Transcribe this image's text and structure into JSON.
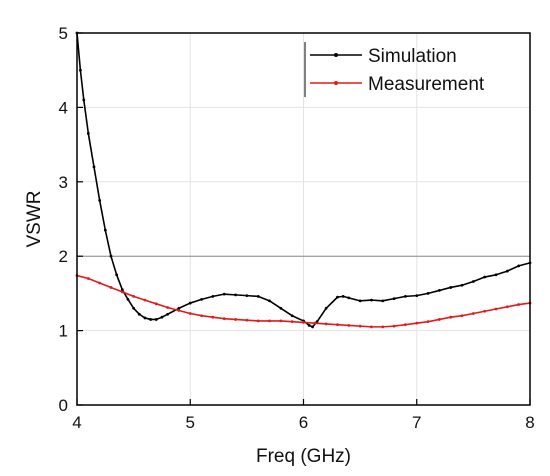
{
  "chart_data": {
    "type": "line",
    "title": "",
    "xlabel": "Freq (GHz)",
    "ylabel": "VSWR",
    "xlim": [
      4,
      8
    ],
    "ylim": [
      0,
      5
    ],
    "xticks": [
      4,
      5,
      6,
      7,
      8
    ],
    "yticks": [
      0,
      1,
      2,
      3,
      4,
      5
    ],
    "grid": "horizontal-and-vertical-light",
    "reference_line": {
      "y": 2
    },
    "legend_position": "top-right",
    "series": [
      {
        "name": "Simulation",
        "color": "#000000",
        "x": [
          4.0,
          4.03,
          4.06,
          4.1,
          4.15,
          4.2,
          4.25,
          4.3,
          4.35,
          4.4,
          4.45,
          4.5,
          4.55,
          4.6,
          4.65,
          4.7,
          4.75,
          4.8,
          4.9,
          5.0,
          5.1,
          5.2,
          5.3,
          5.4,
          5.5,
          5.6,
          5.7,
          5.8,
          5.9,
          6.0,
          6.05,
          6.08,
          6.12,
          6.2,
          6.3,
          6.35,
          6.4,
          6.5,
          6.6,
          6.7,
          6.8,
          6.9,
          7.0,
          7.1,
          7.2,
          7.3,
          7.4,
          7.5,
          7.6,
          7.7,
          7.8,
          7.9,
          8.0
        ],
        "values": [
          5.0,
          4.5,
          4.1,
          3.65,
          3.2,
          2.75,
          2.35,
          2.0,
          1.75,
          1.55,
          1.42,
          1.3,
          1.22,
          1.17,
          1.15,
          1.15,
          1.18,
          1.22,
          1.3,
          1.37,
          1.42,
          1.46,
          1.49,
          1.48,
          1.47,
          1.46,
          1.4,
          1.3,
          1.2,
          1.13,
          1.07,
          1.05,
          1.12,
          1.3,
          1.45,
          1.46,
          1.44,
          1.4,
          1.41,
          1.4,
          1.43,
          1.46,
          1.47,
          1.5,
          1.54,
          1.58,
          1.61,
          1.66,
          1.72,
          1.75,
          1.8,
          1.87,
          1.91
        ]
      },
      {
        "name": "Measurement",
        "color": "#e31a1a",
        "x": [
          4.0,
          4.1,
          4.2,
          4.3,
          4.4,
          4.5,
          4.6,
          4.7,
          4.8,
          4.9,
          5.0,
          5.1,
          5.2,
          5.3,
          5.4,
          5.5,
          5.6,
          5.7,
          5.8,
          5.9,
          6.0,
          6.1,
          6.2,
          6.3,
          6.4,
          6.5,
          6.6,
          6.7,
          6.8,
          6.9,
          7.0,
          7.1,
          7.2,
          7.3,
          7.4,
          7.5,
          7.6,
          7.7,
          7.8,
          7.9,
          8.0
        ],
        "values": [
          1.74,
          1.7,
          1.64,
          1.58,
          1.52,
          1.46,
          1.41,
          1.36,
          1.31,
          1.27,
          1.23,
          1.2,
          1.18,
          1.16,
          1.15,
          1.14,
          1.13,
          1.13,
          1.13,
          1.12,
          1.11,
          1.1,
          1.09,
          1.08,
          1.07,
          1.06,
          1.05,
          1.05,
          1.06,
          1.08,
          1.1,
          1.12,
          1.15,
          1.18,
          1.2,
          1.23,
          1.26,
          1.29,
          1.32,
          1.35,
          1.37
        ]
      }
    ]
  }
}
